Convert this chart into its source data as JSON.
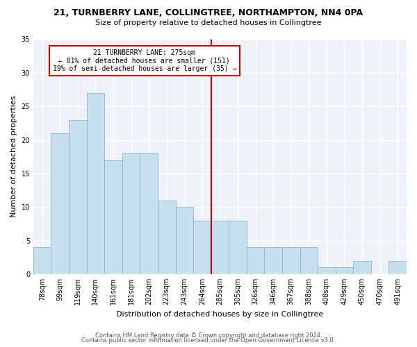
{
  "title": "21, TURNBERRY LANE, COLLINGTREE, NORTHAMPTON, NN4 0PA",
  "subtitle": "Size of property relative to detached houses in Collingtree",
  "xlabel": "Distribution of detached houses by size in Collingtree",
  "ylabel": "Number of detached properties",
  "bar_labels": [
    "78sqm",
    "99sqm",
    "119sqm",
    "140sqm",
    "161sqm",
    "181sqm",
    "202sqm",
    "223sqm",
    "243sqm",
    "264sqm",
    "285sqm",
    "305sqm",
    "326sqm",
    "346sqm",
    "367sqm",
    "388sqm",
    "408sqm",
    "429sqm",
    "450sqm",
    "470sqm",
    "491sqm"
  ],
  "bar_values": [
    4,
    21,
    23,
    27,
    17,
    18,
    18,
    11,
    10,
    8,
    8,
    8,
    4,
    4,
    4,
    4,
    1,
    1,
    2,
    0,
    2
  ],
  "bar_color": "#c8dff0",
  "bar_edge_color": "#8ab4d4",
  "vline_index": 10,
  "vline_color": "#cc0000",
  "annotation_text": "21 TURNBERRY LANE: 275sqm\n← 81% of detached houses are smaller (151)\n19% of semi-detached houses are larger (35) →",
  "annotation_box_facecolor": "#ffffff",
  "annotation_box_edgecolor": "#cc0000",
  "ylim": [
    0,
    35
  ],
  "yticks": [
    0,
    5,
    10,
    15,
    20,
    25,
    30,
    35
  ],
  "footer1": "Contains HM Land Registry data © Crown copyright and database right 2024.",
  "footer2": "Contains public sector information licensed under the Open Government Licence v3.0.",
  "bg_color": "#ffffff",
  "plot_bg_color": "#eef2f8",
  "grid_color": "#ffffff",
  "title_fontsize": 9,
  "subtitle_fontsize": 8,
  "axis_label_fontsize": 8,
  "tick_fontsize": 7,
  "footer_fontsize": 6
}
